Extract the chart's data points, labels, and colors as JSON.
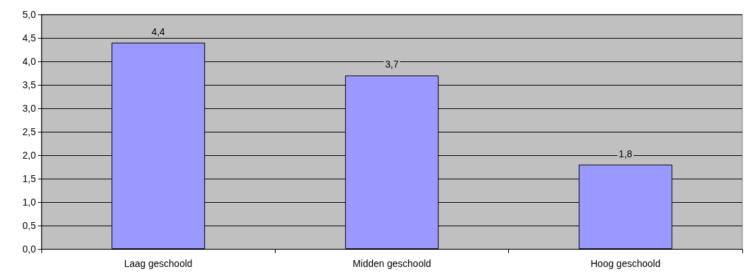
{
  "chart_data": {
    "type": "bar",
    "categories": [
      "Laag geschoold",
      "Midden geschoold",
      "Hoog geschoold"
    ],
    "values": [
      4.4,
      3.7,
      1.8
    ],
    "value_labels": [
      "4,4",
      "3,7",
      "1,8"
    ],
    "color": "#9999ff",
    "ylim": [
      0,
      5
    ],
    "yticks": [
      {
        "value": 0,
        "label": "0,0"
      },
      {
        "value": 0.5,
        "label": "0,5"
      },
      {
        "value": 1,
        "label": "1,0"
      },
      {
        "value": 1.5,
        "label": "1,5"
      },
      {
        "value": 2,
        "label": "2,0"
      },
      {
        "value": 2.5,
        "label": "2,5"
      },
      {
        "value": 3,
        "label": "3,0"
      },
      {
        "value": 3.5,
        "label": "3,5"
      },
      {
        "value": 4,
        "label": "4,0"
      },
      {
        "value": 4.5,
        "label": "4,5"
      },
      {
        "value": 5,
        "label": "5,0"
      }
    ],
    "grid": "y"
  }
}
